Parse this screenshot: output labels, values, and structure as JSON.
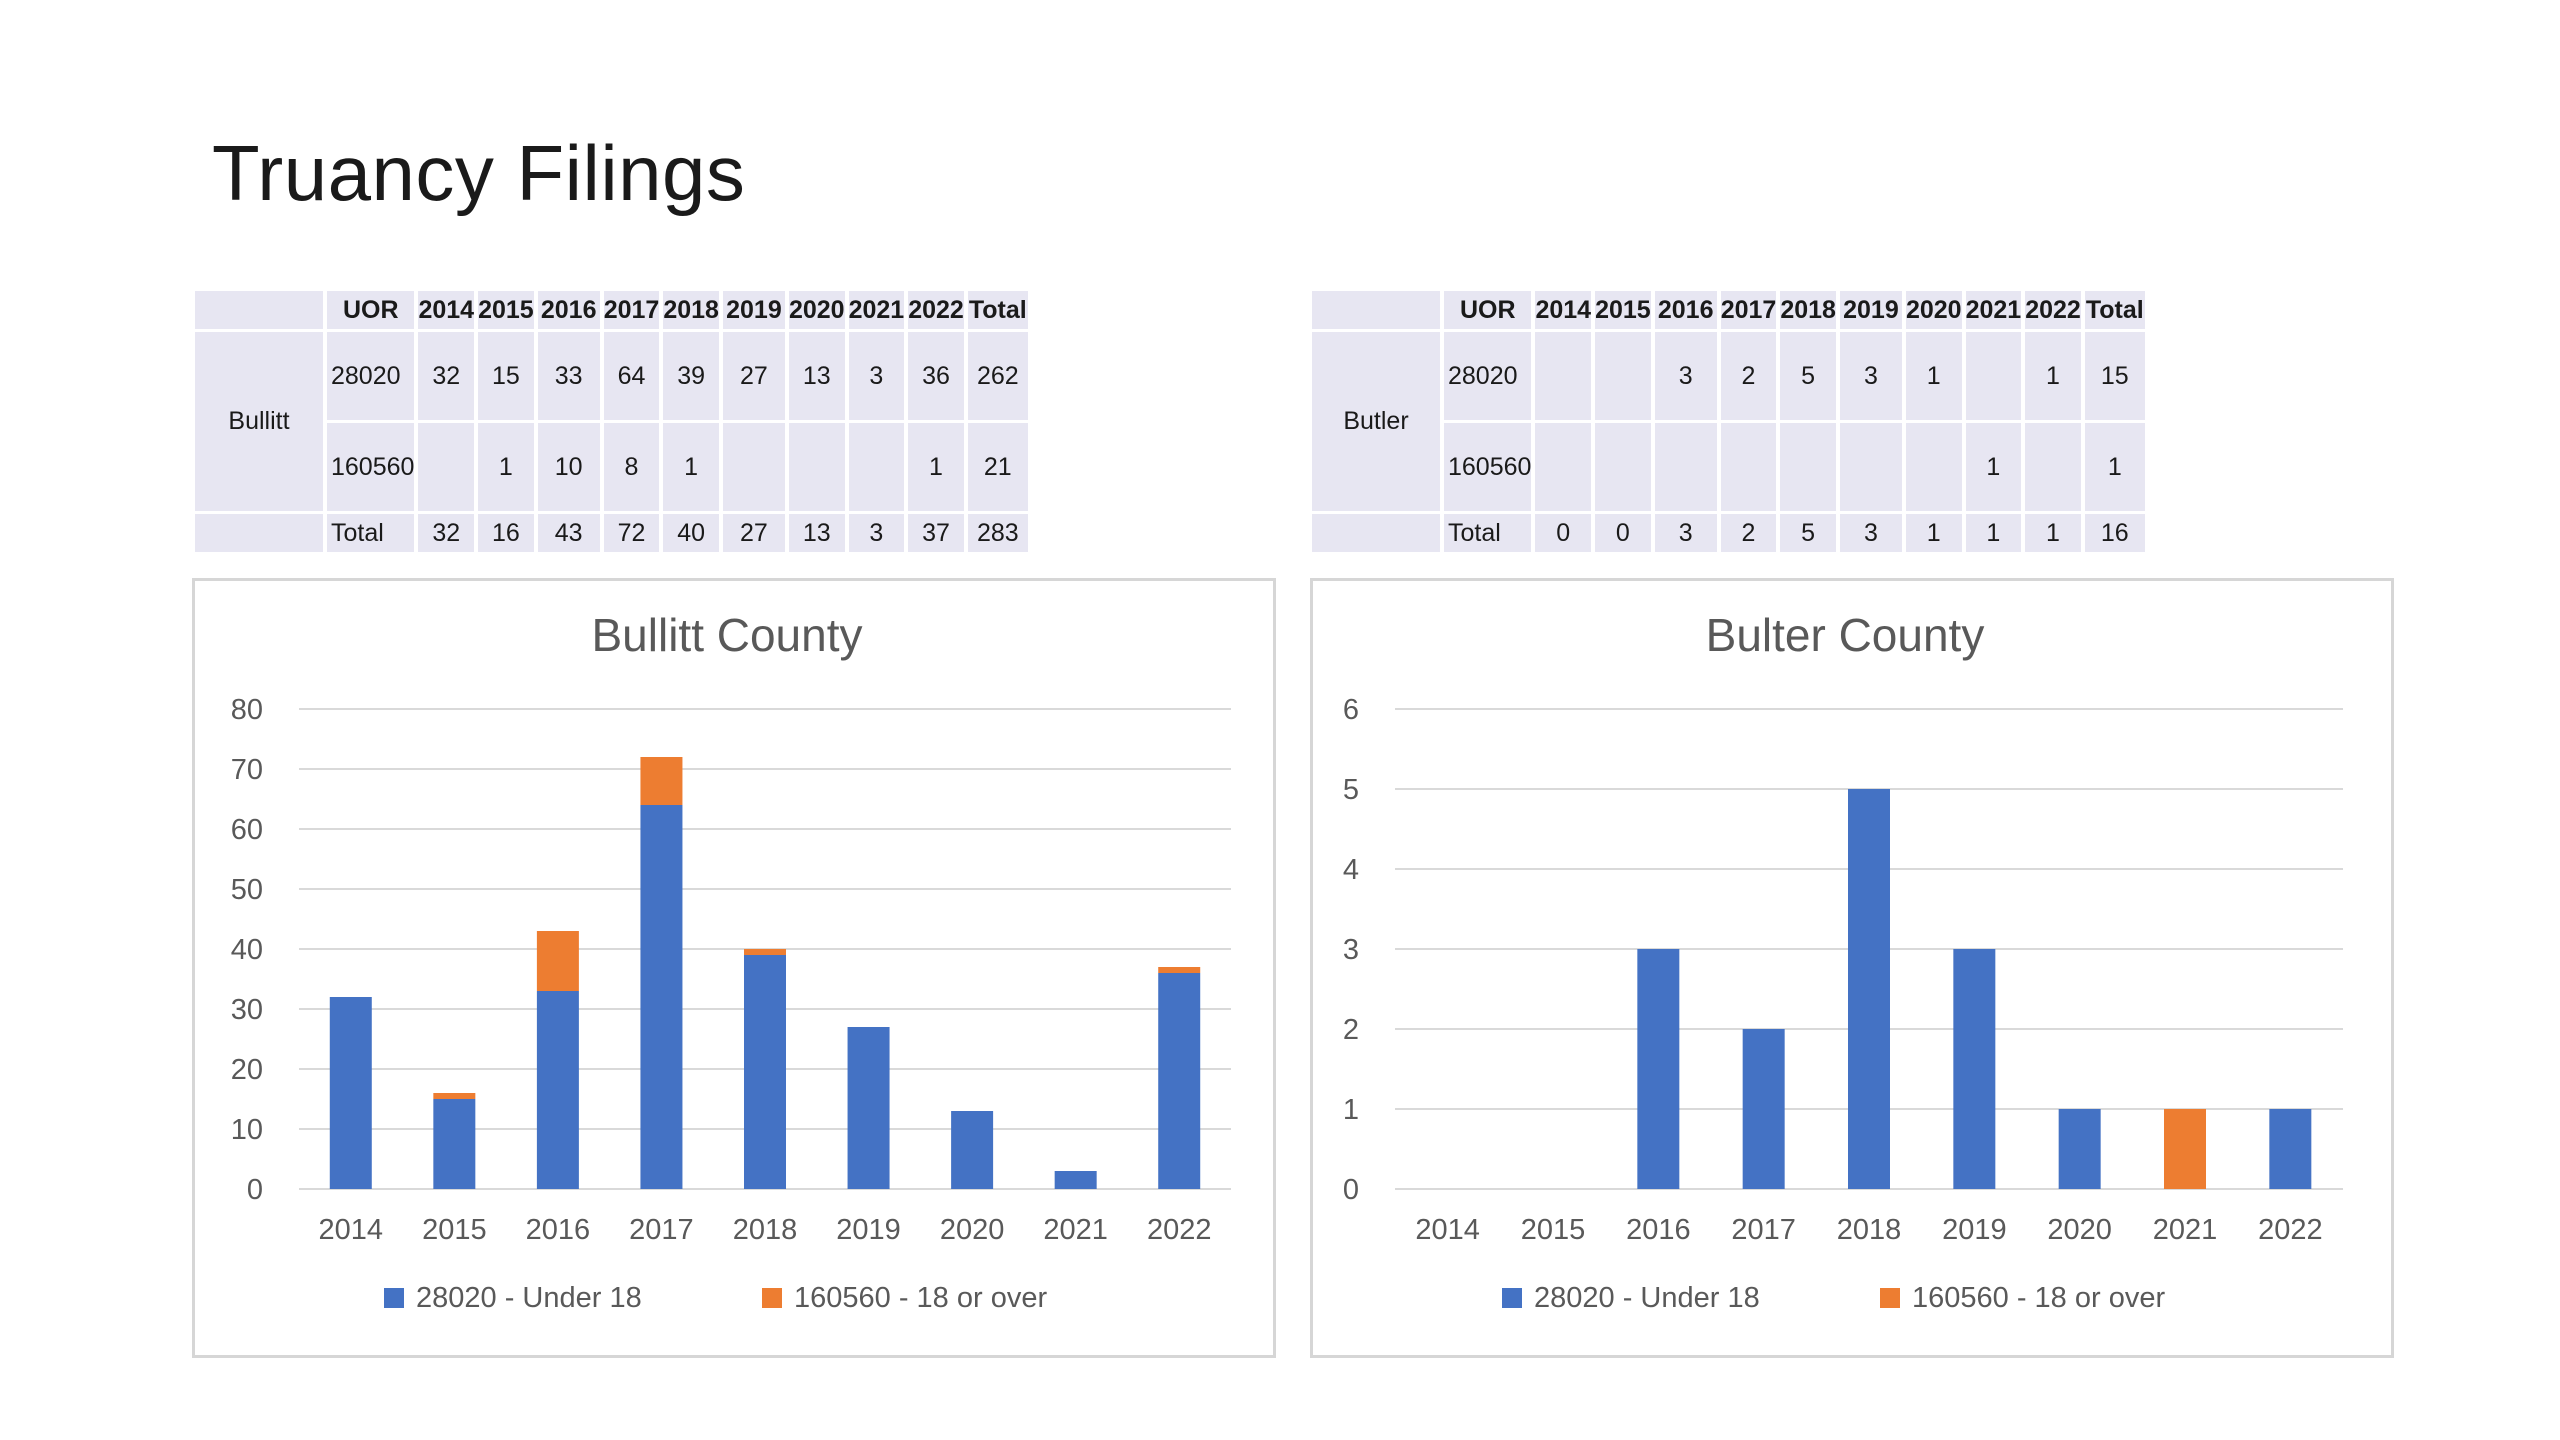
{
  "title": "Truancy Filings",
  "tables": [
    {
      "county": "Bullitt",
      "headers": [
        "UOR",
        "2014",
        "2015",
        "2016",
        "2017",
        "2018",
        "2019",
        "2020",
        "2021",
        "2022",
        "Total"
      ],
      "rows": [
        [
          "28020",
          "32",
          "15",
          "33",
          "64",
          "39",
          "27",
          "13",
          "3",
          "36",
          "262"
        ],
        [
          "160560",
          "",
          "1",
          "10",
          "8",
          "1",
          "",
          "",
          "",
          "1",
          "21"
        ],
        [
          "Total",
          "32",
          "16",
          "43",
          "72",
          "40",
          "27",
          "13",
          "3",
          "37",
          "283"
        ]
      ]
    },
    {
      "county": "Butler",
      "headers": [
        "UOR",
        "2014",
        "2015",
        "2016",
        "2017",
        "2018",
        "2019",
        "2020",
        "2021",
        "2022",
        "Total"
      ],
      "rows": [
        [
          "28020",
          "",
          "",
          "3",
          "2",
          "5",
          "3",
          "1",
          "",
          "1",
          "15"
        ],
        [
          "160560",
          "",
          "",
          "",
          "",
          "",
          "",
          "",
          "1",
          "",
          "1"
        ],
        [
          "Total",
          "0",
          "0",
          "3",
          "2",
          "5",
          "3",
          "1",
          "1",
          "1",
          "16"
        ]
      ]
    }
  ],
  "colors": {
    "series1": "#4472c4",
    "series2": "#ed7d31",
    "grid": "#d9d9d9",
    "axis_text": "#595959",
    "table_bg": "#e7e6f2"
  },
  "chart_data": [
    {
      "type": "bar",
      "stacked": true,
      "title": "Bullitt County",
      "categories": [
        "2014",
        "2015",
        "2016",
        "2017",
        "2018",
        "2019",
        "2020",
        "2021",
        "2022"
      ],
      "series": [
        {
          "name": "28020 - Under 18",
          "values": [
            32,
            15,
            33,
            64,
            39,
            27,
            13,
            3,
            36
          ]
        },
        {
          "name": "160560 - 18 or over",
          "values": [
            0,
            1,
            10,
            8,
            1,
            0,
            0,
            0,
            1
          ]
        }
      ],
      "ylim": [
        0,
        80
      ],
      "yticks": [
        0,
        10,
        20,
        30,
        40,
        50,
        60,
        70,
        80
      ],
      "xlabel": "",
      "ylabel": "",
      "grid": true,
      "legend": "bottom"
    },
    {
      "type": "bar",
      "stacked": true,
      "title": "Bulter County",
      "categories": [
        "2014",
        "2015",
        "2016",
        "2017",
        "2018",
        "2019",
        "2020",
        "2021",
        "2022"
      ],
      "series": [
        {
          "name": "28020 - Under 18",
          "values": [
            0,
            0,
            3,
            2,
            5,
            3,
            1,
            0,
            1
          ]
        },
        {
          "name": "160560 - 18 or over",
          "values": [
            0,
            0,
            0,
            0,
            0,
            0,
            0,
            1,
            0
          ]
        }
      ],
      "ylim": [
        0,
        6
      ],
      "yticks": [
        0,
        1,
        2,
        3,
        4,
        5,
        6
      ],
      "xlabel": "",
      "ylabel": "",
      "grid": true,
      "legend": "bottom"
    }
  ]
}
